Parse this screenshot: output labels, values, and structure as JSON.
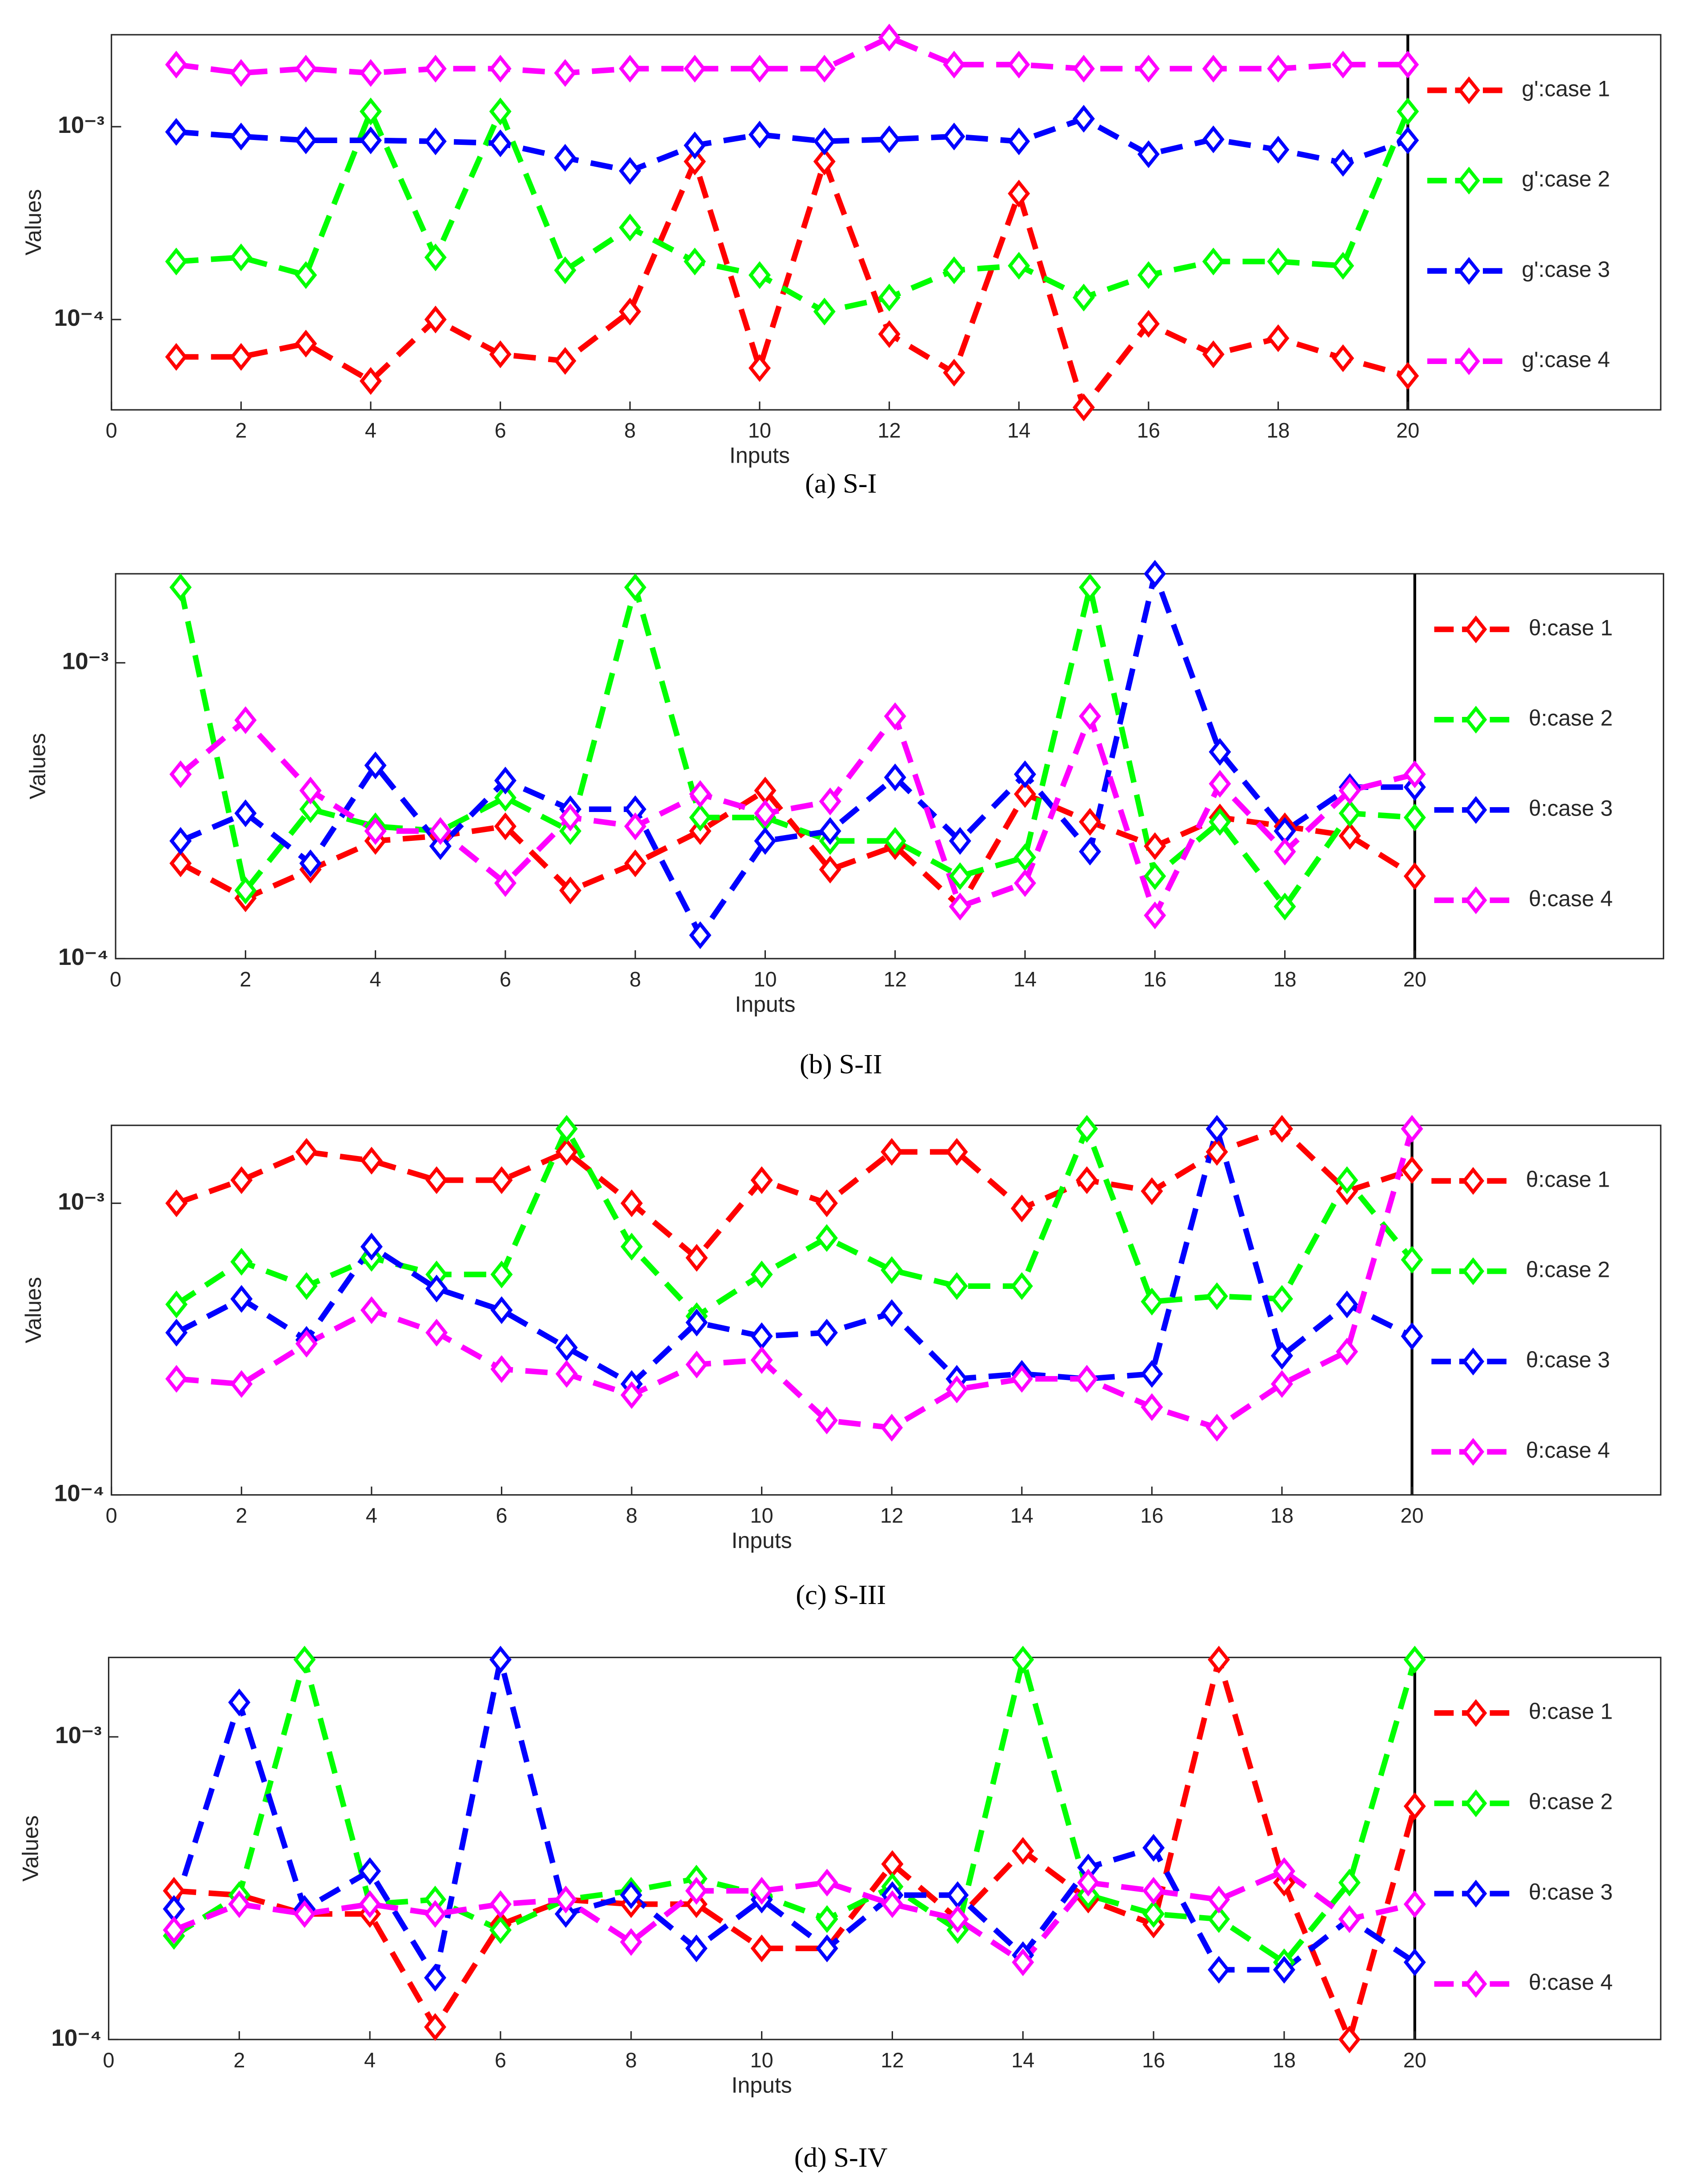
{
  "chart_data": [
    {
      "type": "line",
      "caption": "(a) S-I",
      "xlabel": "Inputs",
      "ylabel": "Values",
      "log_y": true,
      "xlim": [
        0,
        20
      ],
      "xticks": [
        0,
        2,
        4,
        6,
        8,
        10,
        12,
        14,
        16,
        18,
        20
      ],
      "ylim": [
        3.4e-05,
        0.003
      ],
      "yticks": [
        {
          "value": 0.0001,
          "label": "10⁻⁴"
        },
        {
          "value": 0.001,
          "label": "10⁻³"
        }
      ],
      "x": [
        1,
        2,
        3,
        4,
        5,
        6,
        7,
        8,
        9,
        10,
        11,
        12,
        13,
        14,
        15,
        16,
        17,
        18,
        19,
        20
      ],
      "series": [
        {
          "name": "g':case 1",
          "color": "#ff0000",
          "values": [
            6.4e-05,
            6.4e-05,
            7.5e-05,
            4.8e-05,
            0.0001,
            6.6e-05,
            6.1e-05,
            0.00011,
            0.00066,
            5.6e-05,
            0.00066,
            8.4e-05,
            5.3e-05,
            0.00045,
            3.5e-05,
            9.5e-05,
            6.6e-05,
            8e-05,
            6.3e-05,
            5.1e-05
          ]
        },
        {
          "name": "g':case 2",
          "color": "#00ff00",
          "values": [
            0.0002,
            0.00021,
            0.00017,
            0.0012,
            0.00021,
            0.0012,
            0.00018,
            0.0003,
            0.0002,
            0.00017,
            0.00011,
            0.00013,
            0.00018,
            0.00019,
            0.00013,
            0.00017,
            0.0002,
            0.0002,
            0.00019,
            0.0012
          ]
        },
        {
          "name": "g':case 3",
          "color": "#0000ff",
          "values": [
            0.00094,
            0.00089,
            0.00085,
            0.00085,
            0.00084,
            0.00082,
            0.00069,
            0.00059,
            0.0008,
            0.00091,
            0.00084,
            0.00086,
            0.00089,
            0.00084,
            0.0011,
            0.00072,
            0.00086,
            0.00076,
            0.00065,
            0.00085
          ]
        },
        {
          "name": "g':case 4",
          "color": "#ff00ff",
          "values": [
            0.0021,
            0.0019,
            0.002,
            0.0019,
            0.002,
            0.002,
            0.0019,
            0.002,
            0.002,
            0.002,
            0.002,
            0.0029,
            0.0021,
            0.0021,
            0.002,
            0.002,
            0.002,
            0.002,
            0.0021,
            0.0021
          ]
        }
      ]
    },
    {
      "type": "line",
      "caption": "(b) S-II",
      "xlabel": "Inputs",
      "ylabel": "Values",
      "log_y": true,
      "xlim": [
        0,
        20
      ],
      "xticks": [
        0,
        2,
        4,
        6,
        8,
        10,
        12,
        14,
        16,
        18,
        20
      ],
      "ylim": [
        0.0001,
        0.002
      ],
      "yticks": [
        {
          "value": 0.0001,
          "label": "10⁻⁴"
        },
        {
          "value": 0.001,
          "label": "10⁻³"
        }
      ],
      "x": [
        1,
        2,
        3,
        4,
        5,
        6,
        7,
        8,
        9,
        10,
        11,
        12,
        13,
        14,
        15,
        16,
        17,
        18,
        19,
        20
      ],
      "series": [
        {
          "name": "θ:case 1",
          "color": "#ff0000",
          "values": [
            0.00021,
            0.00016,
            0.0002,
            0.00025,
            0.00026,
            0.00028,
            0.00017,
            0.00021,
            0.00027,
            0.00037,
            0.0002,
            0.00024,
            0.00015,
            0.00036,
            0.00029,
            0.00024,
            0.0003,
            0.00028,
            0.00026,
            0.00019
          ]
        },
        {
          "name": "θ:case 2",
          "color": "#00ff00",
          "values": [
            0.0018,
            0.00017,
            0.00032,
            0.00028,
            0.00027,
            0.00035,
            0.00027,
            0.0018,
            0.0003,
            0.0003,
            0.00025,
            0.00025,
            0.00019,
            0.00022,
            0.0018,
            0.00019,
            0.00029,
            0.00015,
            0.00031,
            0.0003
          ]
        },
        {
          "name": "θ:case 3",
          "color": "#0000ff",
          "values": [
            0.00025,
            0.00031,
            0.00021,
            0.00045,
            0.00024,
            0.0004,
            0.00032,
            0.00032,
            0.00012,
            0.00025,
            0.00027,
            0.00041,
            0.00025,
            0.00042,
            0.00023,
            0.002,
            0.0005,
            0.00027,
            0.00038,
            0.00038
          ]
        },
        {
          "name": "θ:case 4",
          "color": "#ff00ff",
          "values": [
            0.00042,
            0.00064,
            0.00037,
            0.00027,
            0.00027,
            0.00018,
            0.0003,
            0.00028,
            0.00036,
            0.00031,
            0.00034,
            0.00066,
            0.00015,
            0.00018,
            0.00066,
            0.00014,
            0.00039,
            0.00023,
            0.00037,
            0.00042
          ]
        }
      ]
    },
    {
      "type": "line",
      "caption": "(c) S-III",
      "xlabel": "Inputs",
      "ylabel": "Values",
      "log_y": true,
      "xlim": [
        0,
        20
      ],
      "xticks": [
        0,
        2,
        4,
        6,
        8,
        10,
        12,
        14,
        16,
        18,
        20
      ],
      "ylim": [
        0.0001,
        0.00185
      ],
      "yticks": [
        {
          "value": 0.0001,
          "label": "10⁻⁴"
        },
        {
          "value": 0.001,
          "label": "10⁻³"
        }
      ],
      "x": [
        1,
        2,
        3,
        4,
        5,
        6,
        7,
        8,
        9,
        10,
        11,
        12,
        13,
        14,
        15,
        16,
        17,
        18,
        19,
        20
      ],
      "series": [
        {
          "name": "θ:case 1",
          "color": "#ff0000",
          "values": [
            0.001,
            0.0012,
            0.0015,
            0.0014,
            0.0012,
            0.0012,
            0.0015,
            0.001,
            0.00065,
            0.0012,
            0.001,
            0.0015,
            0.0015,
            0.00096,
            0.0012,
            0.0011,
            0.0015,
            0.0018,
            0.0011,
            0.0013
          ]
        },
        {
          "name": "θ:case 2",
          "color": "#00ff00",
          "values": [
            0.00045,
            0.00063,
            0.00052,
            0.00065,
            0.00057,
            0.00057,
            0.0018,
            0.00071,
            0.00041,
            0.00057,
            0.00076,
            0.00059,
            0.00052,
            0.00052,
            0.0018,
            0.00046,
            0.00048,
            0.00047,
            0.0012,
            0.00064
          ]
        },
        {
          "name": "θ:case 3",
          "color": "#0000ff",
          "values": [
            0.00036,
            0.00047,
            0.00034,
            0.00071,
            0.00051,
            0.00043,
            0.00032,
            0.00024,
            0.00039,
            0.00035,
            0.00036,
            0.00042,
            0.00025,
            0.00026,
            0.00025,
            0.00026,
            0.0018,
            0.0003,
            0.00045,
            0.00035
          ]
        },
        {
          "name": "θ:case 4",
          "color": "#ff00ff",
          "values": [
            0.00025,
            0.00024,
            0.00033,
            0.00043,
            0.00036,
            0.00027,
            0.00026,
            0.00022,
            0.00028,
            0.00029,
            0.00018,
            0.00017,
            0.00023,
            0.00025,
            0.00025,
            0.0002,
            0.00017,
            0.00024,
            0.00031,
            0.0018
          ]
        }
      ]
    },
    {
      "type": "line",
      "caption": "(d) S-IV",
      "xlabel": "Inputs",
      "ylabel": "Values",
      "log_y": true,
      "xlim": [
        0,
        20
      ],
      "xticks": [
        0,
        2,
        4,
        6,
        8,
        10,
        12,
        14,
        16,
        18,
        20
      ],
      "ylim": [
        0.0001,
        0.00183
      ],
      "yticks": [
        {
          "value": 0.0001,
          "label": "10⁻⁴"
        },
        {
          "value": 0.001,
          "label": "10⁻³"
        }
      ],
      "x": [
        1,
        2,
        3,
        4,
        5,
        6,
        7,
        8,
        9,
        10,
        11,
        12,
        13,
        14,
        15,
        16,
        17,
        18,
        19,
        20
      ],
      "series": [
        {
          "name": "θ:case 1",
          "color": "#ff0000",
          "values": [
            0.00031,
            0.0003,
            0.00026,
            0.00026,
            0.00011,
            0.00024,
            0.00029,
            0.00028,
            0.00028,
            0.0002,
            0.0002,
            0.00038,
            0.00025,
            0.00042,
            0.00029,
            0.00024,
            0.0018,
            0.00033,
            0.0001,
            0.00059
          ]
        },
        {
          "name": "θ:case 2",
          "color": "#00ff00",
          "values": [
            0.00022,
            0.0003,
            0.0018,
            0.00028,
            0.00029,
            0.00023,
            0.00029,
            0.00031,
            0.00034,
            0.0003,
            0.00025,
            0.00032,
            0.00023,
            0.0018,
            0.0003,
            0.00026,
            0.00025,
            0.00018,
            0.00033,
            0.0018
          ]
        },
        {
          "name": "θ:case 3",
          "color": "#0000ff",
          "values": [
            0.00027,
            0.0013,
            0.00027,
            0.00036,
            0.00016,
            0.0018,
            0.00026,
            0.0003,
            0.0002,
            0.00029,
            0.0002,
            0.0003,
            0.0003,
            0.00019,
            0.00037,
            0.00043,
            0.00017,
            0.00017,
            0.00025,
            0.00018
          ]
        },
        {
          "name": "θ:case 4",
          "color": "#ff00ff",
          "values": [
            0.00023,
            0.00028,
            0.00026,
            0.00028,
            0.00026,
            0.00028,
            0.00029,
            0.00021,
            0.00031,
            0.00031,
            0.00033,
            0.00028,
            0.00025,
            0.00018,
            0.00033,
            0.00031,
            0.00029,
            0.00036,
            0.00025,
            0.00028
          ]
        }
      ]
    }
  ]
}
